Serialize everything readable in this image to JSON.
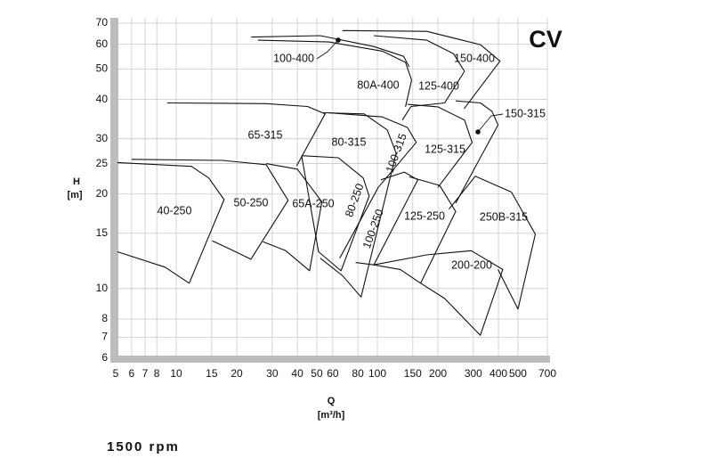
{
  "chart_data": {
    "type": "pump-chart",
    "title": "CV",
    "footer": "1500 rpm",
    "x_label": "Q",
    "x_unit": "[m³/h]",
    "y_label": "H",
    "y_unit": "[m]",
    "xscale": "log",
    "yscale": "log",
    "grid": true,
    "line_color": "#111111",
    "xlim": [
      5,
      700
    ],
    "ylim": [
      6,
      70
    ],
    "xticks": [
      5,
      6,
      7,
      8,
      10,
      15,
      20,
      30,
      40,
      50,
      60,
      80,
      100,
      150,
      200,
      300,
      400,
      500,
      700
    ],
    "yticks": [
      6,
      7,
      8,
      10,
      15,
      20,
      25,
      30,
      40,
      50,
      60,
      70
    ],
    "series": [
      {
        "name": "40-250",
        "x": [
          5.1,
          11.9,
          14.5,
          17.3,
          11.6,
          8.8,
          5.1
        ],
        "y": [
          25.2,
          24.5,
          22.5,
          19.2,
          10.4,
          11.7,
          13.1
        ]
      },
      {
        "name": "50-250",
        "x": [
          6,
          17,
          28,
          36,
          23.5,
          18.8,
          15.1
        ],
        "y": [
          25.8,
          25.6,
          24.8,
          19.1,
          12.4,
          13.3,
          14.2
        ]
      },
      {
        "name": "65A-250",
        "x": [
          28,
          40,
          53,
          46,
          35,
          27
        ],
        "y": [
          25,
          24,
          18.9,
          11.4,
          13.2,
          14.1
        ]
      },
      {
        "name": "80-250",
        "x": [
          42,
          64,
          85,
          91,
          66,
          51,
          42
        ],
        "y": [
          26.5,
          26.1,
          22.5,
          19.7,
          11.4,
          13.1,
          26.5
        ]
      },
      {
        "name": "65-315",
        "x": [
          9,
          28,
          45,
          55,
          39.7
        ],
        "y": [
          39,
          38.8,
          38,
          36,
          24.6
        ]
      },
      {
        "name": "80-315",
        "x": [
          54,
          86,
          112,
          124,
          83,
          67,
          52
        ],
        "y": [
          36.3,
          36,
          32,
          27,
          9.4,
          11,
          12.5
        ]
      },
      {
        "name": "100-315",
        "x": [
          57,
          106,
          141,
          156,
          101,
          65
        ],
        "y": [
          36.3,
          35.2,
          32.6,
          29.2,
          21,
          12.5
        ]
      },
      {
        "name": "100-250",
        "x": [
          104,
          136,
          159,
          96,
          78
        ],
        "y": [
          22.2,
          23.5,
          22.2,
          11.9,
          12.1
        ]
      },
      {
        "name": "125-250",
        "x": [
          144,
          204,
          245,
          164,
          130,
          96
        ],
        "y": [
          22.7,
          21.3,
          17.6,
          10.4,
          11.5,
          11.9
        ]
      },
      {
        "name": "200-200",
        "x": [
          96,
          176,
          293,
          420,
          325,
          216,
          164
        ],
        "y": [
          11.9,
          12.8,
          13.2,
          11.5,
          7.1,
          9.3,
          10.4
        ]
      },
      {
        "name": "250B-315",
        "x": [
          227,
          307,
          464,
          610,
          500,
          398
        ],
        "y": [
          17.9,
          22.8,
          20.3,
          14.9,
          8.6,
          11.5
        ]
      },
      {
        "name": "125-315",
        "x": [
          141,
          200,
          271,
          296,
          200
        ],
        "y": [
          38.6,
          37.9,
          34.4,
          29.2,
          21
        ]
      },
      {
        "name": "150-315",
        "x": [
          245,
          325,
          371,
          398,
          245
        ],
        "y": [
          39.6,
          39,
          36.7,
          33.2,
          18.7
        ]
      },
      {
        "name": "100-400",
        "x": [
          23.6,
          52,
          96,
          135,
          144
        ],
        "y": [
          63.2,
          63.9,
          59,
          54.9,
          50.8
        ]
      },
      {
        "name": "80A-400",
        "x": [
          25.5,
          57.5,
          106,
          138,
          148,
          138
        ],
        "y": [
          61.8,
          61,
          57,
          52.5,
          46.1,
          37.9
        ]
      },
      {
        "name": "125-400",
        "x": [
          96,
          176,
          239,
          271,
          216,
          147,
          133
        ],
        "y": [
          63.9,
          61.8,
          56,
          49.2,
          39,
          38,
          34.4
        ]
      },
      {
        "name": "150-400",
        "x": [
          67,
          176,
          325,
          407,
          270
        ],
        "y": [
          66.3,
          65.9,
          59.8,
          53,
          37.4
        ]
      }
    ]
  }
}
